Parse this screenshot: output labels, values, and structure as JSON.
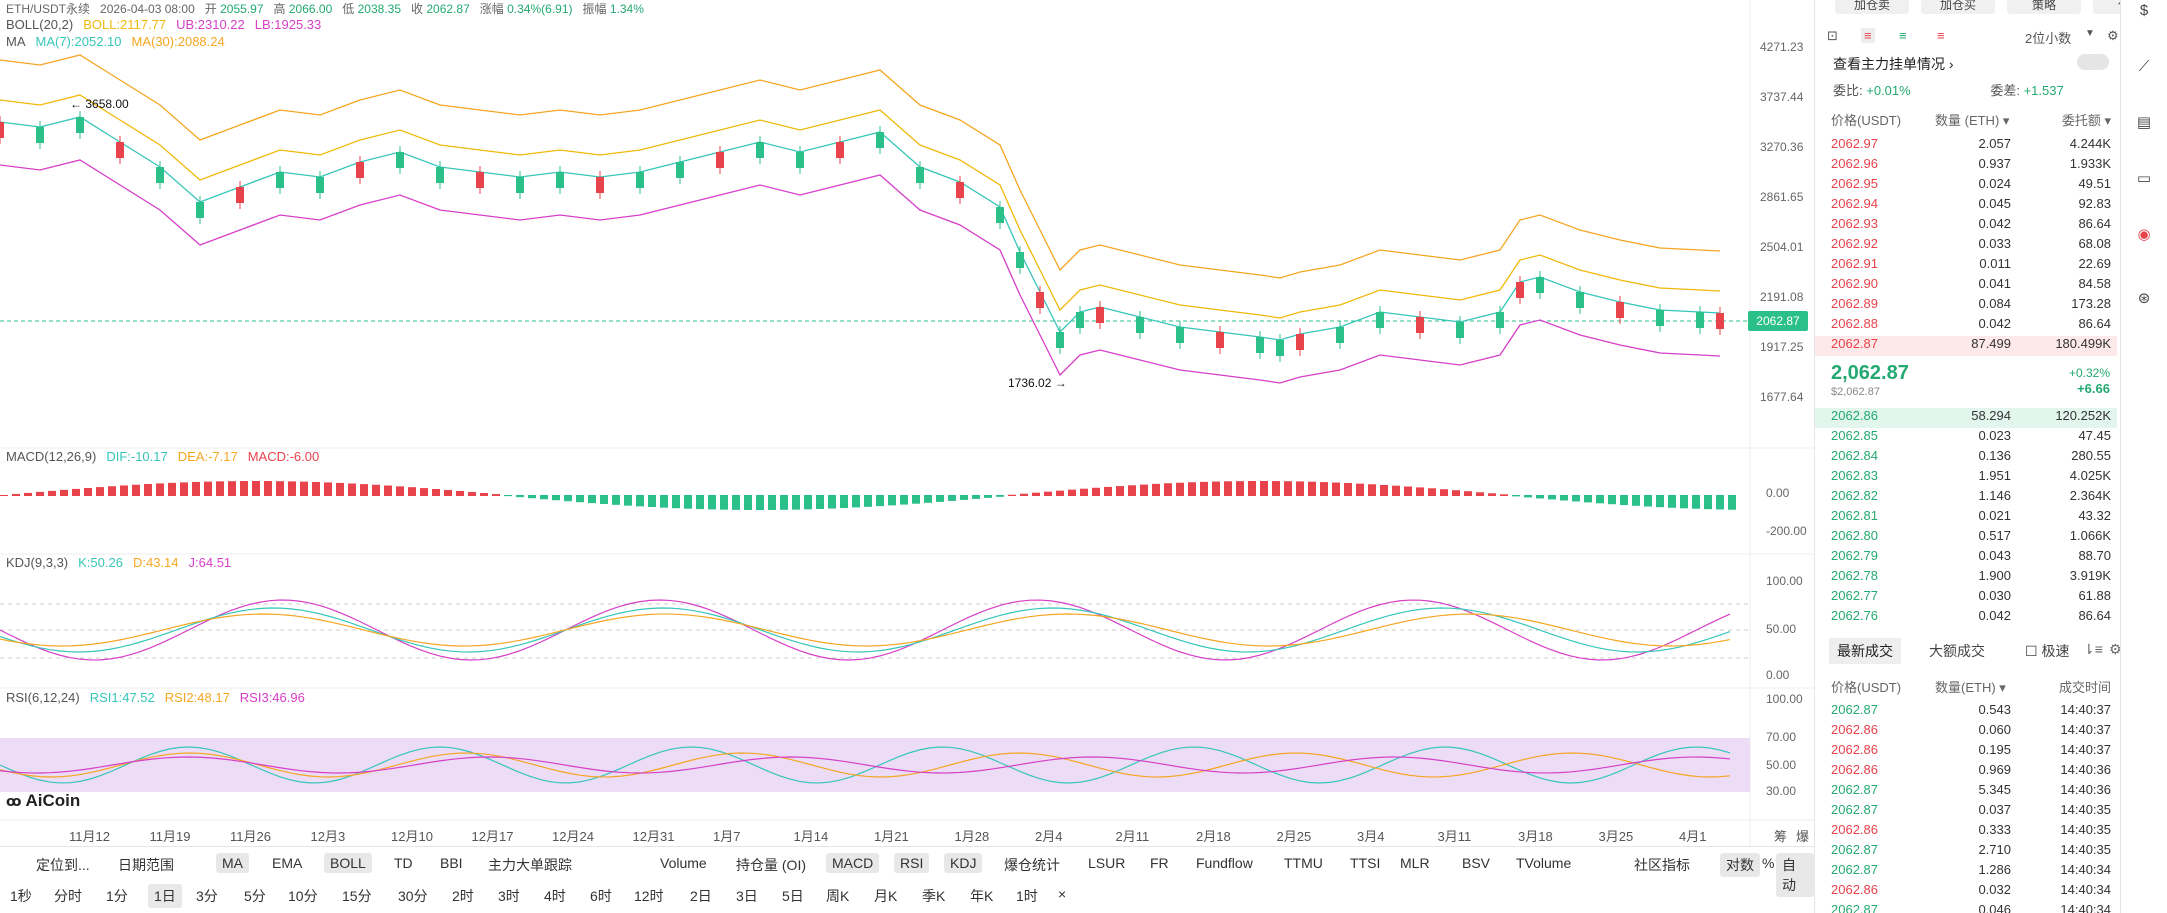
{
  "header": {
    "pair": "ETH/USDT永续",
    "date": "2026-04-03 08:00",
    "open_label": "开",
    "open": "2055.97",
    "high_label": "高",
    "high": "2066.00",
    "low_label": "低",
    "low": "2038.35",
    "close_label": "收",
    "close": "2062.87",
    "change_label": "涨幅",
    "change": "0.34%(6.91)",
    "amp_label": "振幅",
    "amp": "1.34%"
  },
  "indicators": {
    "boll": {
      "name": "BOLL(20,2)",
      "boll": "BOLL:2117.77",
      "ub": "UB:2310.22",
      "lb": "LB:1925.33"
    },
    "ma": {
      "name": "MA",
      "ma7": "MA(7):2052.10",
      "ma30": "MA(30):2088.24"
    },
    "macd": {
      "name": "MACD(12,26,9)",
      "dif": "DIF:-10.17",
      "dea": "DEA:-7.17",
      "macd": "MACD:-6.00"
    },
    "kdj": {
      "name": "KDJ(9,3,3)",
      "k": "K:50.26",
      "d": "D:43.14",
      "j": "J:64.51"
    },
    "rsi": {
      "name": "RSI(6,12,24)",
      "rsi1": "RSI1:47.52",
      "rsi2": "RSI2:48.17",
      "rsi3": "RSI3:46.96"
    }
  },
  "price_axis": [
    "4271.23",
    "3737.44",
    "3270.36",
    "2861.65",
    "2504.01",
    "2191.08",
    "1917.25",
    "1677.64"
  ],
  "current_price_tag": "2062.87",
  "annotations": {
    "high": "3658.00",
    "low": "1736.02"
  },
  "macd_axis": [
    "0.00",
    "-200.00"
  ],
  "kdj_axis": [
    "100.00",
    "50.00",
    "0.00"
  ],
  "rsi_axis": [
    "100.00",
    "70.00",
    "50.00",
    "30.00"
  ],
  "x_axis": [
    "11月12",
    "11月19",
    "11月26",
    "12月3",
    "12月10",
    "12月17",
    "12月24",
    "12月31",
    "1月7",
    "1月14",
    "1月21",
    "1月28",
    "2月4",
    "2月11",
    "2月18",
    "2月25",
    "3月4",
    "3月11",
    "3月18",
    "3月25",
    "4月1"
  ],
  "x_axis_right": [
    "筹",
    "爆"
  ],
  "logo": "AiCoin",
  "toolbar1": [
    {
      "label": "定位到...",
      "active": false
    },
    {
      "label": "日期范围",
      "active": false
    },
    {
      "label": "MA",
      "active": true
    },
    {
      "label": "EMA",
      "active": false
    },
    {
      "label": "BOLL",
      "active": true
    },
    {
      "label": "TD",
      "active": false
    },
    {
      "label": "BBI",
      "active": false
    },
    {
      "label": "主力大单跟踪",
      "active": false
    },
    {
      "label": "Volume",
      "active": false
    },
    {
      "label": "持仓量 (OI)",
      "active": false
    },
    {
      "label": "MACD",
      "active": true
    },
    {
      "label": "RSI",
      "active": true
    },
    {
      "label": "KDJ",
      "active": true
    },
    {
      "label": "爆仓统计",
      "active": false
    },
    {
      "label": "LSUR",
      "active": false
    },
    {
      "label": "FR",
      "active": false
    },
    {
      "label": "Fundflow",
      "active": false
    },
    {
      "label": "TTMU",
      "active": false
    },
    {
      "label": "TTSI",
      "active": false
    },
    {
      "label": "MLR",
      "active": false
    },
    {
      "label": "BSV",
      "active": false
    },
    {
      "label": "TVolume",
      "active": false
    },
    {
      "label": "社区指标",
      "active": false
    },
    {
      "label": "对数",
      "active": true
    },
    {
      "label": "%",
      "active": false
    },
    {
      "label": "自动",
      "active": true
    }
  ],
  "toolbar2": [
    {
      "label": "1秒",
      "active": false
    },
    {
      "label": "分时",
      "active": false
    },
    {
      "label": "1分",
      "active": false
    },
    {
      "label": "1日",
      "active": true
    },
    {
      "label": "3分",
      "active": false
    },
    {
      "label": "5分",
      "active": false
    },
    {
      "label": "10分",
      "active": false
    },
    {
      "label": "15分",
      "active": false
    },
    {
      "label": "30分",
      "active": false
    },
    {
      "label": "2时",
      "active": false
    },
    {
      "label": "3时",
      "active": false
    },
    {
      "label": "4时",
      "active": false
    },
    {
      "label": "6时",
      "active": false
    },
    {
      "label": "12时",
      "active": false
    },
    {
      "label": "2日",
      "active": false
    },
    {
      "label": "3日",
      "active": false
    },
    {
      "label": "5日",
      "active": false
    },
    {
      "label": "周K",
      "active": false
    },
    {
      "label": "月K",
      "active": false
    },
    {
      "label": "季K",
      "active": false
    },
    {
      "label": "年K",
      "active": false
    },
    {
      "label": "1时",
      "active": false
    },
    {
      "label": "×",
      "active": false
    }
  ],
  "orderbook": {
    "top_buttons": [
      "加仓卖",
      "加仓买",
      "策略",
      "偏坑"
    ],
    "precision": "2位小数",
    "main_order_link": "查看主力挂单情况",
    "ratio_label": "委比:",
    "ratio": "+0.01%",
    "diff_label": "委差:",
    "diff": "+1.537",
    "col_price": "价格(USDT)",
    "col_qty": "数量 (ETH)",
    "col_total": "委托额",
    "asks": [
      [
        "2062.97",
        "2.057",
        "4.244K"
      ],
      [
        "2062.96",
        "0.937",
        "1.933K"
      ],
      [
        "2062.95",
        "0.024",
        "49.51"
      ],
      [
        "2062.94",
        "0.045",
        "92.83"
      ],
      [
        "2062.93",
        "0.042",
        "86.64"
      ],
      [
        "2062.92",
        "0.033",
        "68.08"
      ],
      [
        "2062.91",
        "0.011",
        "22.69"
      ],
      [
        "2062.90",
        "0.041",
        "84.58"
      ],
      [
        "2062.89",
        "0.084",
        "173.28"
      ],
      [
        "2062.88",
        "0.042",
        "86.64"
      ],
      [
        "2062.87",
        "87.499",
        "180.499K"
      ]
    ],
    "last_price": "2,062.87",
    "last_price_usd": "$2,062.87",
    "last_change_pct": "+0.32%",
    "last_change": "+6.66",
    "bids": [
      [
        "2062.86",
        "58.294",
        "120.252K"
      ],
      [
        "2062.85",
        "0.023",
        "47.45"
      ],
      [
        "2062.84",
        "0.136",
        "280.55"
      ],
      [
        "2062.83",
        "1.951",
        "4.025K"
      ],
      [
        "2062.82",
        "1.146",
        "2.364K"
      ],
      [
        "2062.81",
        "0.021",
        "43.32"
      ],
      [
        "2062.80",
        "0.517",
        "1.066K"
      ],
      [
        "2062.79",
        "0.043",
        "88.70"
      ],
      [
        "2062.78",
        "1.900",
        "3.919K"
      ],
      [
        "2062.77",
        "0.030",
        "61.88"
      ],
      [
        "2062.76",
        "0.042",
        "86.64"
      ]
    ],
    "trades_tab": "最新成交",
    "big_trades_tab": "大额成交",
    "fast_label": "极速",
    "trade_col_price": "价格(USDT)",
    "trade_col_qty": "数量(ETH)",
    "trade_col_time": "成交时间",
    "trades": [
      [
        "2062.87",
        "0.543",
        "14:40:37",
        "green"
      ],
      [
        "2062.86",
        "0.060",
        "14:40:37",
        "red"
      ],
      [
        "2062.86",
        "0.195",
        "14:40:37",
        "red"
      ],
      [
        "2062.86",
        "0.969",
        "14:40:36",
        "red"
      ],
      [
        "2062.87",
        "5.345",
        "14:40:36",
        "green"
      ],
      [
        "2062.87",
        "0.037",
        "14:40:35",
        "green"
      ],
      [
        "2062.86",
        "0.333",
        "14:40:35",
        "red"
      ],
      [
        "2062.87",
        "2.710",
        "14:40:35",
        "green"
      ],
      [
        "2062.87",
        "1.286",
        "14:40:34",
        "green"
      ],
      [
        "2062.86",
        "0.032",
        "14:40:34",
        "red"
      ],
      [
        "2062.87",
        "0.046",
        "14:40:34",
        "green"
      ]
    ]
  },
  "colors": {
    "up": "#2bbf8a",
    "down": "#e8424b",
    "boll_mid": "#f0b90b",
    "boll_band": "#d63fc8",
    "ma7": "#37c6b8",
    "ma30": "#f5a623"
  }
}
